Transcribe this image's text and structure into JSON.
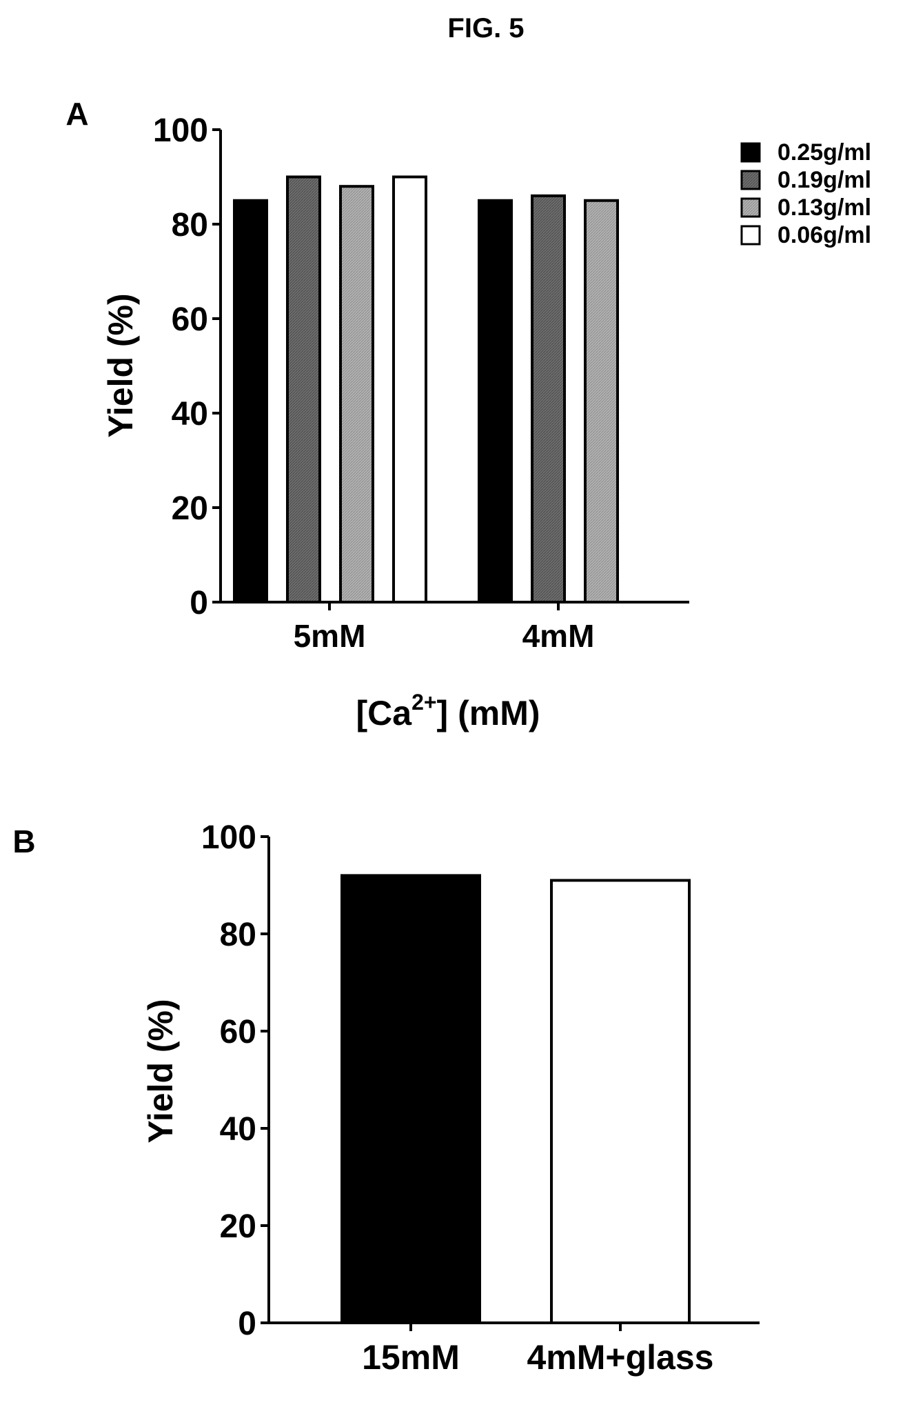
{
  "figure_title": "FIG. 5",
  "chart_data": [
    {
      "panel": "A",
      "type": "bar",
      "categories": [
        "5mM",
        "4mM"
      ],
      "series": [
        {
          "name": "0.25g/ml",
          "values": [
            85,
            85
          ],
          "color": "#000000"
        },
        {
          "name": "0.19g/ml",
          "values": [
            90,
            86
          ],
          "color": "#6e6e6e"
        },
        {
          "name": "0.13g/ml",
          "values": [
            88,
            85
          ],
          "color": "#a9a9a9"
        },
        {
          "name": "0.06g/ml",
          "values": [
            90,
            null
          ],
          "color": "#ffffff"
        }
      ],
      "xlabel": {
        "prefix": "[Ca",
        "sup": "2+",
        "suffix": "] (mM)"
      },
      "ylabel": "Yield (%)",
      "ylim": [
        0,
        100
      ],
      "yticks": [
        0,
        20,
        40,
        60,
        80,
        100
      ],
      "grid": false,
      "legend": "top-right"
    },
    {
      "panel": "B",
      "type": "bar",
      "categories": [
        "15mM",
        "4mM+glass"
      ],
      "values": [
        92,
        91
      ],
      "colors": [
        "#000000",
        "#ffffff"
      ],
      "ylabel": "Yield (%)",
      "ylim": [
        0,
        100
      ],
      "yticks": [
        0,
        20,
        40,
        60,
        80,
        100
      ],
      "grid": false
    }
  ]
}
